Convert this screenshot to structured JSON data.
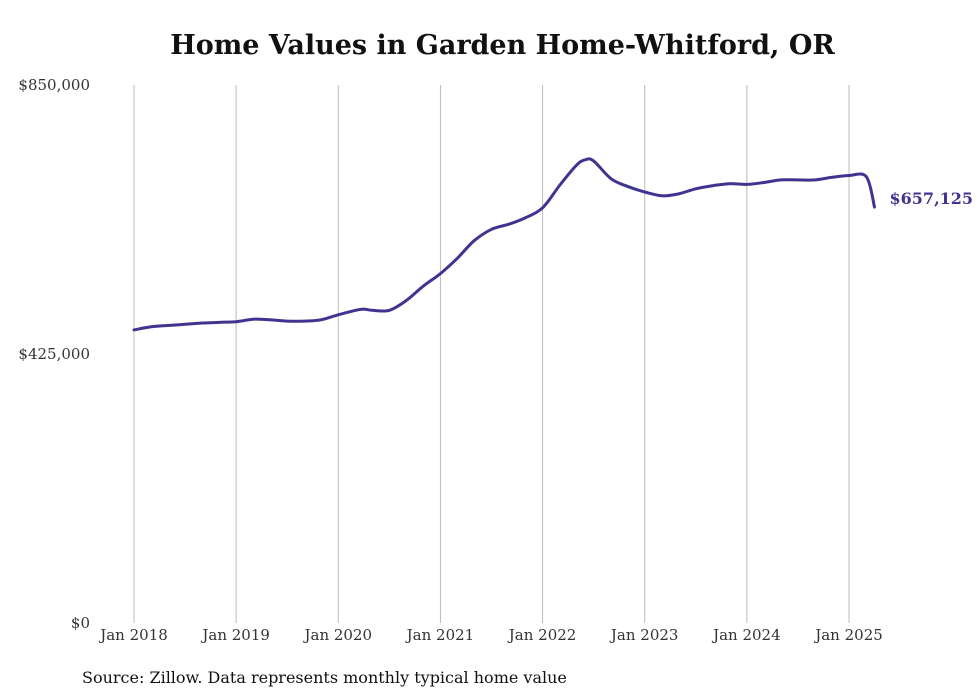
{
  "chart_data": {
    "type": "line",
    "title": "Home Values in Garden Home-Whitford, OR",
    "xlabel": "",
    "ylabel": "",
    "ylim": [
      0,
      850000
    ],
    "y_ticks": [
      {
        "value": 0,
        "label": "$0"
      },
      {
        "value": 425000,
        "label": "$425,000"
      },
      {
        "value": 850000,
        "label": "$850,000"
      }
    ],
    "x_ticks": [
      {
        "value": 2018,
        "label": "Jan 2018"
      },
      {
        "value": 2019,
        "label": "Jan 2019"
      },
      {
        "value": 2020,
        "label": "Jan 2020"
      },
      {
        "value": 2021,
        "label": "Jan 2021"
      },
      {
        "value": 2022,
        "label": "Jan 2022"
      },
      {
        "value": 2023,
        "label": "Jan 2023"
      },
      {
        "value": 2024,
        "label": "Jan 2024"
      },
      {
        "value": 2025,
        "label": "Jan 2025"
      }
    ],
    "xlim": [
      2018,
      2025
    ],
    "grid": "vertical",
    "line_color": "#3f3590",
    "end_label": "$657,125",
    "series": [
      {
        "x": [
          2018.0,
          2018.17,
          2018.33,
          2018.5,
          2018.67,
          2018.83,
          2019.0,
          2019.17,
          2019.33,
          2019.5,
          2019.67,
          2019.83,
          2020.0,
          2020.17,
          2020.25,
          2020.33,
          2020.5,
          2020.67,
          2020.83,
          2021.0,
          2021.17,
          2021.33,
          2021.5,
          2021.67,
          2021.83,
          2022.0,
          2022.17,
          2022.33,
          2022.42,
          2022.5,
          2022.67,
          2022.83,
          2023.0,
          2023.17,
          2023.33,
          2023.5,
          2023.67,
          2023.83,
          2024.0,
          2024.17,
          2024.33,
          2024.5,
          2024.67,
          2024.83,
          2025.0,
          2025.17,
          2025.25
        ],
        "values": [
          463000,
          468000,
          470000,
          472000,
          474000,
          475000,
          476000,
          480000,
          479000,
          477000,
          477000,
          479000,
          487000,
          494000,
          496000,
          494000,
          494000,
          510000,
          532000,
          552000,
          577000,
          604000,
          622000,
          630000,
          640000,
          656000,
          692000,
          723000,
          732000,
          730000,
          702000,
          690000,
          681000,
          675000,
          678000,
          686000,
          691000,
          694000,
          693000,
          696000,
          700000,
          700000,
          700000,
          704000,
          707000,
          705000,
          657125
        ]
      }
    ]
  },
  "source": "Source: Zillow. Data represents monthly typical home value"
}
